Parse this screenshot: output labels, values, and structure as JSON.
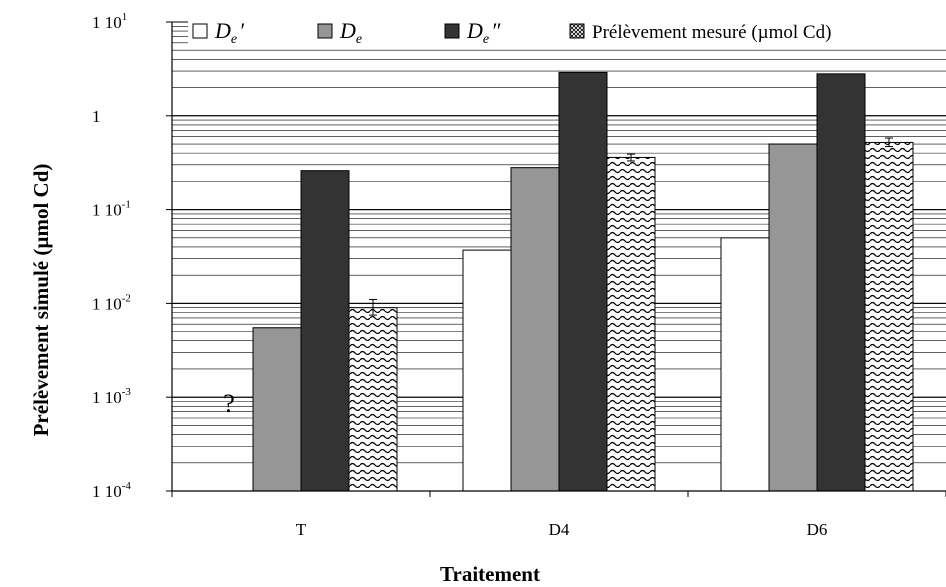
{
  "chart_data": {
    "type": "bar",
    "xlabel": "Traitement",
    "ylabel": "Prélèvement simulé (µmol Cd)",
    "y_scale": "log",
    "ylim": [
      0.0001,
      10
    ],
    "y_ticks": [
      {
        "base": "1 10",
        "exp": "-4"
      },
      {
        "base": "1 10",
        "exp": "-3"
      },
      {
        "base": "1 10",
        "exp": "-2"
      },
      {
        "base": "1 10",
        "exp": "-1"
      },
      {
        "base": "1",
        "exp": ""
      },
      {
        "base": "1 10",
        "exp": "1"
      }
    ],
    "grid": "horizontal, log minor lines",
    "legend_position": "top",
    "categories": [
      "T",
      "D4",
      "D6"
    ],
    "series": [
      {
        "name": "D_e′",
        "legend_symbol": "De",
        "legend_suffix": "′",
        "color": "#ffffff",
        "values": [
          null,
          0.037,
          0.05
        ]
      },
      {
        "name": "D_e",
        "legend_symbol": "De",
        "legend_suffix": "",
        "color": "#969696",
        "values": [
          0.0055,
          0.28,
          0.5
        ]
      },
      {
        "name": "D_e″",
        "legend_symbol": "De",
        "legend_suffix": "″",
        "color": "#333333",
        "values": [
          0.26,
          2.9,
          2.8
        ]
      },
      {
        "name": "Prélèvement mesuré (µmol Cd)",
        "legend_text": "Prélèvement mesuré (µmol Cd)",
        "color": "pattern",
        "values": [
          0.009,
          0.36,
          0.52
        ],
        "error_low": [
          0.0075,
          0.33,
          0.47
        ],
        "error_high": [
          0.011,
          0.39,
          0.58
        ]
      }
    ],
    "annotations": [
      {
        "category": "T",
        "text": "?"
      }
    ]
  }
}
